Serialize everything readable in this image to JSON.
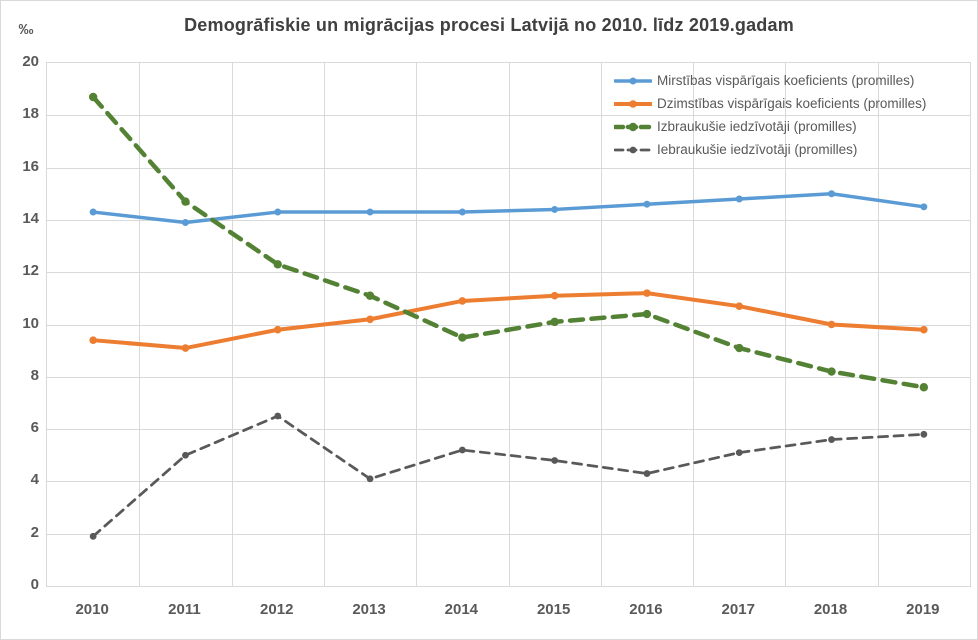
{
  "chart_data": {
    "type": "line",
    "title": "Demogrāfiskie un migrācijas procesi Latvijā no 2010. līdz 2019.gadam",
    "y_unit": "‰",
    "categories": [
      "2010",
      "2011",
      "2012",
      "2013",
      "2014",
      "2015",
      "2016",
      "2017",
      "2018",
      "2019"
    ],
    "y_ticks": [
      20,
      18,
      16,
      14,
      12,
      10,
      8,
      6,
      4,
      2,
      0
    ],
    "ylim": [
      0,
      20
    ],
    "grid": true,
    "legend_position": "top-right-inside",
    "colors": {
      "grid": "#D9D9D9",
      "axis_text": "#595959",
      "title_text": "#404040"
    },
    "series": [
      {
        "name": "Mirstības vispārīgais koeficients (promilles)",
        "color": "#5B9BD5",
        "line_style": "solid",
        "values": [
          14.3,
          13.9,
          14.3,
          14.3,
          14.3,
          14.4,
          14.6,
          14.8,
          15.0,
          14.5
        ]
      },
      {
        "name": "Dzimstības vispārīgais koeficients (promilles)",
        "color": "#ED7D31",
        "line_style": "solid",
        "values": [
          9.4,
          9.1,
          9.8,
          10.2,
          10.9,
          11.1,
          11.2,
          10.7,
          10.0,
          9.8
        ]
      },
      {
        "name": "Izbraukušie iedzīvotāji (promilles)",
        "color": "#548235",
        "line_style": "dashed",
        "values": [
          18.7,
          14.7,
          12.3,
          11.1,
          9.5,
          10.1,
          10.4,
          9.1,
          8.2,
          7.6
        ]
      },
      {
        "name": "Iebraukušie iedzīvotāji (promilles)",
        "color": "#595959",
        "line_style": "dashed",
        "values": [
          1.9,
          5.0,
          6.5,
          4.1,
          5.2,
          4.8,
          4.3,
          5.1,
          5.6,
          5.8
        ]
      }
    ]
  }
}
